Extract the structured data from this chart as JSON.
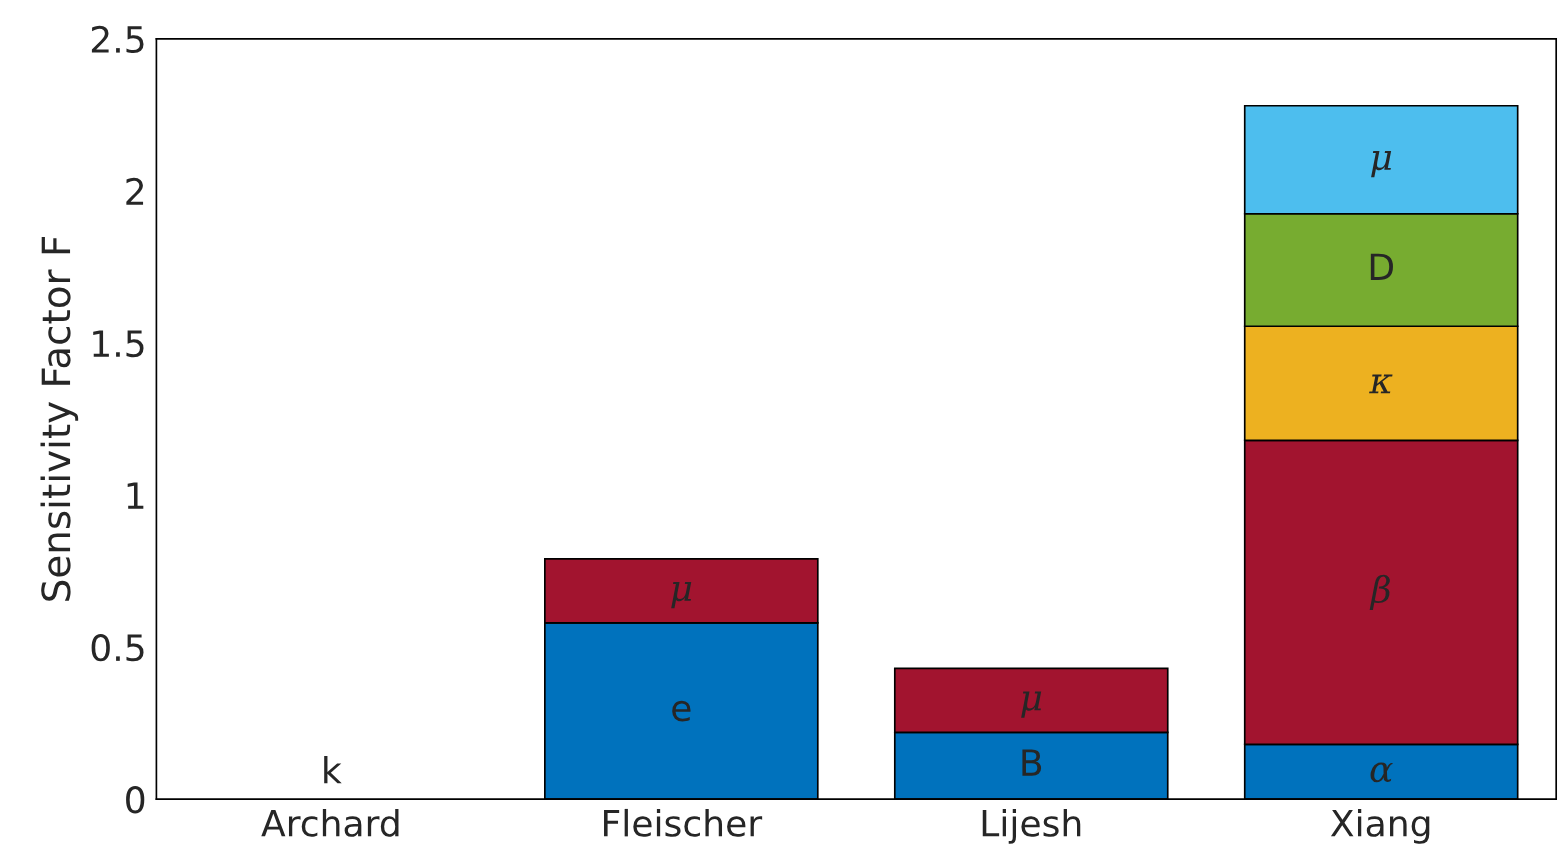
{
  "chart_data": {
    "type": "bar",
    "stacked": true,
    "ylabel": "Sensitivity Factor F",
    "categories": [
      "Archard",
      "Fleischer",
      "Lijesh",
      "Xiang"
    ],
    "series": [
      {
        "color": "#0072bd",
        "values": [
          0,
          0.58,
          0.22,
          0.18
        ],
        "value_labels": [
          "k",
          "e",
          "B",
          "α"
        ]
      },
      {
        "color": "#a2142f",
        "values": [
          null,
          0.21,
          0.21,
          1.0
        ],
        "value_labels": [
          null,
          "μ",
          "μ",
          "β"
        ]
      },
      {
        "color": "#edb120",
        "values": [
          null,
          null,
          null,
          0.375
        ],
        "value_labels": [
          null,
          null,
          null,
          "κ"
        ]
      },
      {
        "color": "#77ac30",
        "values": [
          null,
          null,
          null,
          0.37
        ],
        "value_labels": [
          null,
          null,
          null,
          "D"
        ]
      },
      {
        "color": "#4dbeee",
        "values": [
          null,
          null,
          null,
          0.355
        ],
        "value_labels": [
          null,
          null,
          null,
          "μ"
        ]
      }
    ],
    "ylim": [
      0,
      2.5
    ],
    "yticks": [
      0,
      {
        "value": 0.5,
        "label": "0.5"
      },
      1,
      {
        "value": 1.5,
        "label": "1.5"
      },
      2,
      {
        "value": 2.5,
        "label": "2.5"
      }
    ],
    "grid": false,
    "legend": false
  }
}
